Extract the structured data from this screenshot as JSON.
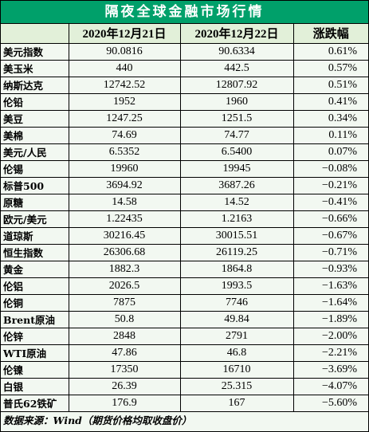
{
  "title": "隔夜全球金融市场行情",
  "headers": [
    "",
    "2020年12月21日",
    "2020年12月22日",
    "涨跌幅"
  ],
  "rows": [
    [
      "美元指数",
      "90.0816",
      "90.6334",
      "0.61%"
    ],
    [
      "美玉米",
      "440",
      "442.5",
      "0.57%"
    ],
    [
      "纳斯达克",
      "12742.52",
      "12807.92",
      "0.51%"
    ],
    [
      "伦铅",
      "1952",
      "1960",
      "0.41%"
    ],
    [
      "美豆",
      "1247.25",
      "1251.5",
      "0.34%"
    ],
    [
      "美棉",
      "74.69",
      "74.77",
      "0.11%"
    ],
    [
      "美元/人民",
      "6.5352",
      "6.5400",
      "0.07%"
    ],
    [
      "伦锡",
      "19960",
      "19945",
      "−0.08%"
    ],
    [
      "标普500",
      "3694.92",
      "3687.26",
      "−0.21%"
    ],
    [
      "原糖",
      "14.58",
      "14.52",
      "−0.41%"
    ],
    [
      "欧元/美元",
      "1.22435",
      "1.2163",
      "−0.66%"
    ],
    [
      "道琼斯",
      "30216.45",
      "30015.51",
      "−0.67%"
    ],
    [
      "恒生指数",
      "26306.68",
      "26119.25",
      "−0.71%"
    ],
    [
      "黄金",
      "1882.3",
      "1864.8",
      "−0.93%"
    ],
    [
      "伦铝",
      "2026.5",
      "1993.5",
      "−1.63%"
    ],
    [
      "伦铜",
      "7875",
      "7746",
      "−1.64%"
    ],
    [
      "Brent原油",
      "50.8",
      "49.84",
      "−1.89%"
    ],
    [
      "伦锌",
      "2848",
      "2791",
      "−2.00%"
    ],
    [
      "WTI原油",
      "47.86",
      "46.8",
      "−2.21%"
    ],
    [
      "伦镍",
      "17350",
      "16710",
      "−3.69%"
    ],
    [
      "白银",
      "26.39",
      "25.315",
      "−4.07%"
    ],
    [
      "普氏62铁矿",
      "176.9",
      "167",
      "−5.60%"
    ]
  ],
  "footer": "数据来源：Wind（期货价格均取收盘价）",
  "colors": {
    "title_bg": "#00a06a",
    "header_bg": "#e2f0d9",
    "body_bg": "#f2f8f1"
  }
}
